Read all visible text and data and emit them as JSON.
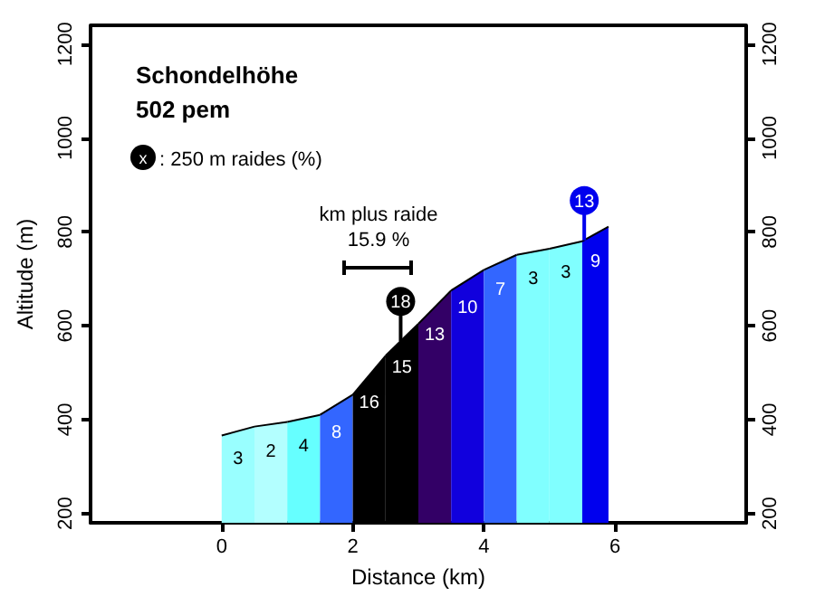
{
  "chart_data": {
    "type": "area",
    "title": "Schondelhöhe",
    "subtitle": "502 pem",
    "xlabel": "Distance (km)",
    "ylabel": "Altitude (m)",
    "xlim": [
      -2,
      8
    ],
    "xticks": [
      0,
      2,
      4,
      6
    ],
    "ylim": [
      180,
      1240
    ],
    "yticks": [
      200,
      400,
      600,
      800,
      1000,
      1200
    ],
    "y2lim": [
      180,
      1240
    ],
    "y2ticks": [
      200,
      400,
      600,
      800,
      1000,
      1200
    ],
    "series": [
      {
        "x": [
          0,
          0.5
        ],
        "values": [
          366,
          385
        ],
        "color": "#99ffff"
      },
      {
        "x": [
          0.5,
          1
        ],
        "values": [
          385,
          395
        ],
        "color": "#b3ffff"
      },
      {
        "x": [
          1,
          1.5
        ],
        "values": [
          395,
          410
        ],
        "color": "#66ffff"
      },
      {
        "x": [
          1.5,
          2
        ],
        "values": [
          410,
          453
        ],
        "color": "#3366ff"
      },
      {
        "x": [
          2,
          2.5
        ],
        "values": [
          453,
          536
        ],
        "color": "#000000"
      },
      {
        "x": [
          2.5,
          3
        ],
        "values": [
          536,
          604
        ],
        "color": "#000000"
      },
      {
        "x": [
          3,
          3.5
        ],
        "values": [
          604,
          675
        ],
        "color": "#330066"
      },
      {
        "x": [
          3.5,
          4
        ],
        "values": [
          675,
          719
        ],
        "color": "#1100dd"
      },
      {
        "x": [
          4,
          4.5
        ],
        "values": [
          719,
          751
        ],
        "color": "#3366ff"
      },
      {
        "x": [
          4.5,
          5
        ],
        "values": [
          751,
          764
        ],
        "color": "#80ffff"
      },
      {
        "x": [
          5,
          5.5
        ],
        "values": [
          764,
          780
        ],
        "color": "#80ffff"
      },
      {
        "x": [
          5.5,
          5.9
        ],
        "values": [
          780,
          811
        ],
        "color": "#0000ee"
      }
    ],
    "annotations": [
      "x",
      ": 250 m raides (%)",
      "km plus raide",
      "15.9 %",
      {
        "text": "18",
        "x": 2.73,
        "y": 567
      },
      {
        "text": "13",
        "x": 5.53,
        "y": 782
      },
      "3",
      "2",
      "4",
      "8",
      "16",
      "15",
      "13",
      "10",
      "7",
      "3",
      "3",
      "9"
    ]
  }
}
